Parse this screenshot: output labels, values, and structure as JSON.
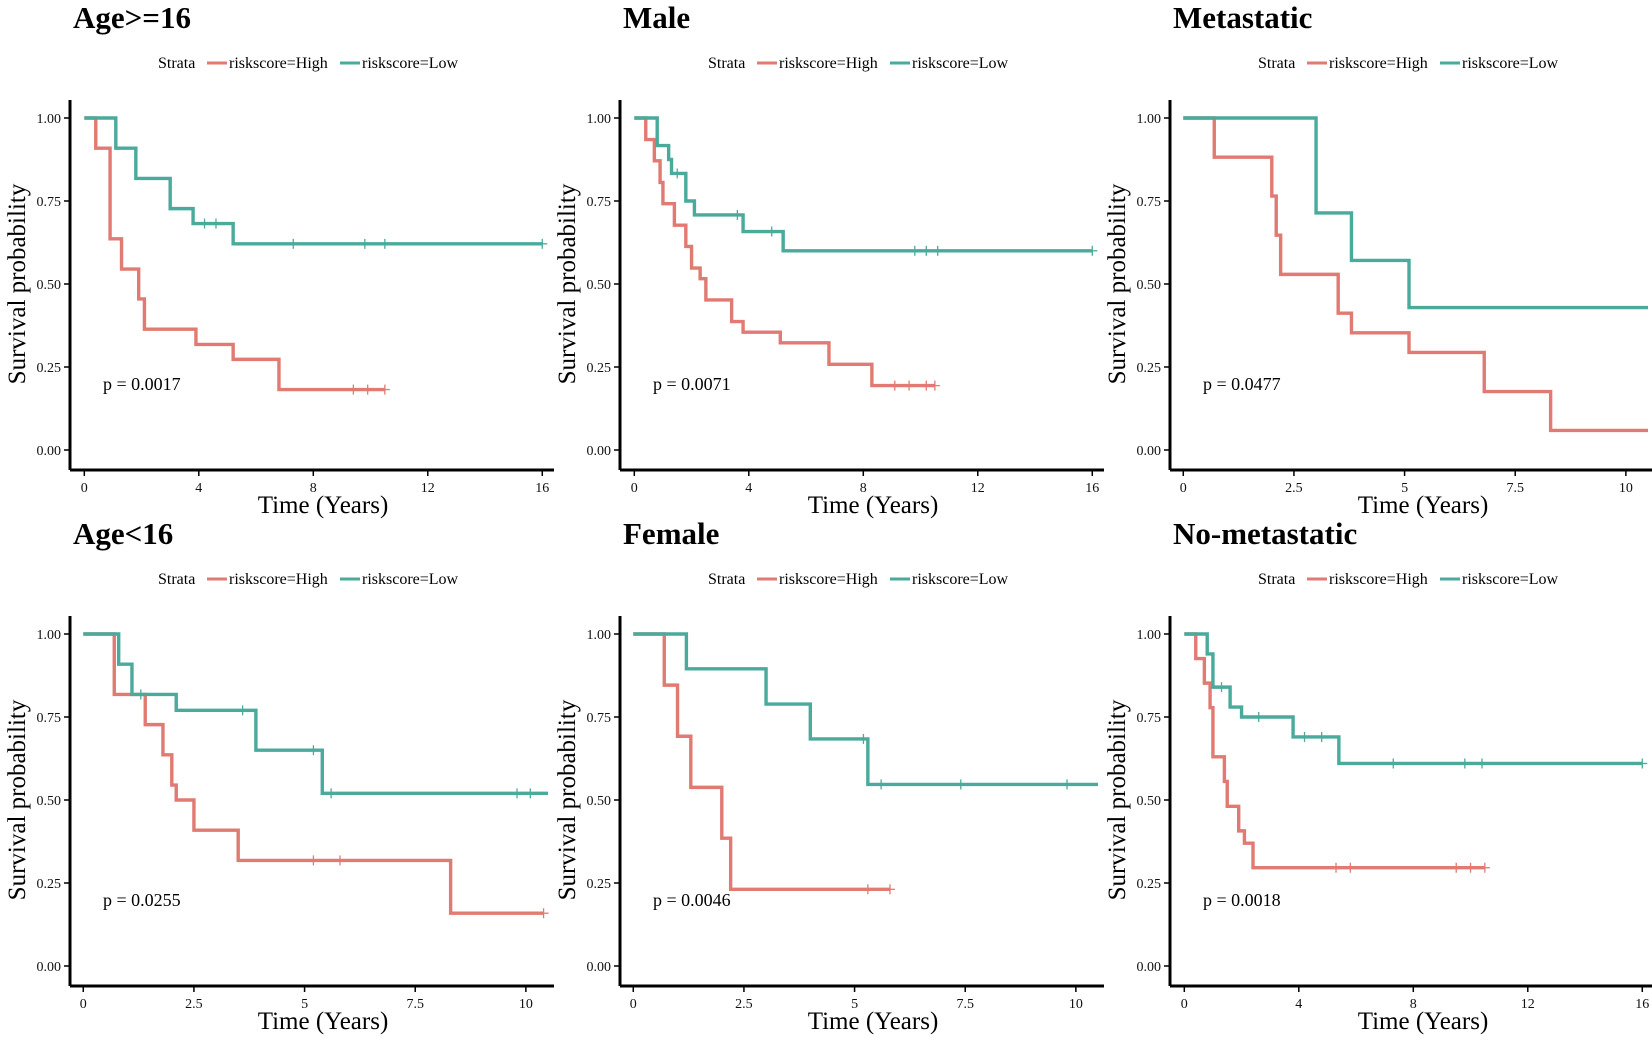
{
  "colors": {
    "high": "#E07A72",
    "low": "#4AAA9C",
    "axis": "#000000"
  },
  "chart_data": [
    {
      "type": "line",
      "title": "Age>=16",
      "xlabel": "Time (Years)",
      "ylabel": "Survival probability",
      "xlim": [
        -0.5,
        16.2
      ],
      "xticks": [
        0,
        4,
        8,
        12,
        16
      ],
      "xtick_labels": [
        "0",
        "4",
        "8",
        "12",
        "16"
      ],
      "ylim": [
        0,
        1
      ],
      "yticks": [
        0,
        0.25,
        0.5,
        0.75,
        1
      ],
      "ytick_labels": [
        "0.00",
        "0.25",
        "0.50",
        "0.75",
        "1.00"
      ],
      "legend": {
        "title": "Strata",
        "entries": [
          "riskscore=High",
          "riskscore=Low"
        ]
      },
      "pvalue": "p = 0.0017",
      "series": [
        {
          "name": "riskscore=High",
          "color": "#E07A72",
          "steps": [
            [
              0,
              1
            ],
            [
              0.4,
              0.909
            ],
            [
              0.9,
              0.636
            ],
            [
              1.3,
              0.545
            ],
            [
              1.9,
              0.455
            ],
            [
              2.1,
              0.364
            ],
            [
              3.9,
              0.318
            ],
            [
              5.2,
              0.273
            ],
            [
              6.8,
              0.182
            ],
            [
              10.5,
              0.182
            ]
          ],
          "censors": [
            [
              9.4,
              0.182
            ],
            [
              9.9,
              0.182
            ],
            [
              10.5,
              0.182
            ]
          ]
        },
        {
          "name": "riskscore=Low",
          "color": "#4AAA9C",
          "steps": [
            [
              0,
              1
            ],
            [
              1.1,
              0.909
            ],
            [
              1.8,
              0.818
            ],
            [
              3.0,
              0.727
            ],
            [
              3.8,
              0.682
            ],
            [
              5.2,
              0.621
            ],
            [
              16.0,
              0.621
            ]
          ],
          "censors": [
            [
              4.2,
              0.682
            ],
            [
              4.6,
              0.682
            ],
            [
              7.3,
              0.621
            ],
            [
              9.8,
              0.621
            ],
            [
              10.5,
              0.621
            ],
            [
              16.0,
              0.621
            ]
          ]
        }
      ]
    },
    {
      "type": "line",
      "title": "Male",
      "xlabel": "Time (Years)",
      "ylabel": "Survival probability",
      "xlim": [
        -0.5,
        16.2
      ],
      "xticks": [
        0,
        4,
        8,
        12,
        16
      ],
      "xtick_labels": [
        "0",
        "4",
        "8",
        "12",
        "16"
      ],
      "ylim": [
        0,
        1
      ],
      "yticks": [
        0,
        0.25,
        0.5,
        0.75,
        1
      ],
      "ytick_labels": [
        "0.00",
        "0.25",
        "0.50",
        "0.75",
        "1.00"
      ],
      "legend": {
        "title": "Strata",
        "entries": [
          "riskscore=High",
          "riskscore=Low"
        ]
      },
      "pvalue": "p = 0.0071",
      "series": [
        {
          "name": "riskscore=High",
          "color": "#E07A72",
          "steps": [
            [
              0,
              1
            ],
            [
              0.4,
              0.935
            ],
            [
              0.7,
              0.871
            ],
            [
              0.9,
              0.806
            ],
            [
              1.0,
              0.742
            ],
            [
              1.4,
              0.677
            ],
            [
              1.8,
              0.613
            ],
            [
              2.0,
              0.548
            ],
            [
              2.3,
              0.516
            ],
            [
              2.5,
              0.452
            ],
            [
              3.4,
              0.387
            ],
            [
              3.8,
              0.355
            ],
            [
              5.1,
              0.323
            ],
            [
              6.8,
              0.258
            ],
            [
              8.3,
              0.194
            ],
            [
              10.5,
              0.194
            ]
          ],
          "censors": [
            [
              9.1,
              0.194
            ],
            [
              9.6,
              0.194
            ],
            [
              10.2,
              0.194
            ],
            [
              10.5,
              0.194
            ]
          ]
        },
        {
          "name": "riskscore=Low",
          "color": "#4AAA9C",
          "steps": [
            [
              0,
              1
            ],
            [
              0.8,
              0.917
            ],
            [
              1.2,
              0.875
            ],
            [
              1.3,
              0.833
            ],
            [
              1.8,
              0.75
            ],
            [
              2.1,
              0.708
            ],
            [
              3.8,
              0.658
            ],
            [
              5.2,
              0.6
            ],
            [
              16.0,
              0.6
            ]
          ],
          "censors": [
            [
              1.5,
              0.833
            ],
            [
              3.6,
              0.708
            ],
            [
              4.8,
              0.658
            ],
            [
              9.8,
              0.6
            ],
            [
              10.2,
              0.6
            ],
            [
              10.6,
              0.6
            ],
            [
              16.0,
              0.6
            ]
          ]
        }
      ]
    },
    {
      "type": "line",
      "title": "Metastatic",
      "xlabel": "Time (Years)",
      "ylabel": "Survival probability",
      "xlim": [
        -0.3,
        10.5
      ],
      "xticks": [
        0,
        2.5,
        5,
        7.5,
        10
      ],
      "xtick_labels": [
        "0",
        "2.5",
        "5",
        "7.5",
        "10"
      ],
      "ylim": [
        0,
        1
      ],
      "yticks": [
        0,
        0.25,
        0.5,
        0.75,
        1
      ],
      "ytick_labels": [
        "0.00",
        "0.25",
        "0.50",
        "0.75",
        "1.00"
      ],
      "legend": {
        "title": "Strata",
        "entries": [
          "riskscore=High",
          "riskscore=Low"
        ]
      },
      "pvalue": "p = 0.0477",
      "series": [
        {
          "name": "riskscore=High",
          "color": "#E07A72",
          "steps": [
            [
              0,
              1
            ],
            [
              0.7,
              0.882
            ],
            [
              2.0,
              0.765
            ],
            [
              2.1,
              0.647
            ],
            [
              2.2,
              0.529
            ],
            [
              3.5,
              0.412
            ],
            [
              3.8,
              0.353
            ],
            [
              5.1,
              0.294
            ],
            [
              6.8,
              0.176
            ],
            [
              8.3,
              0.059
            ],
            [
              10.5,
              0.059
            ]
          ],
          "censors": []
        },
        {
          "name": "riskscore=Low",
          "color": "#4AAA9C",
          "steps": [
            [
              0,
              1
            ],
            [
              3.0,
              0.714
            ],
            [
              3.8,
              0.571
            ],
            [
              5.1,
              0.429
            ],
            [
              10.5,
              0.429
            ]
          ],
          "censors": []
        }
      ]
    },
    {
      "type": "line",
      "title": "Age<16",
      "xlabel": "Time (Years)",
      "ylabel": "Survival probability",
      "xlim": [
        -0.3,
        10.5
      ],
      "xticks": [
        0,
        2.5,
        5,
        7.5,
        10
      ],
      "xtick_labels": [
        "0",
        "2.5",
        "5",
        "7.5",
        "10"
      ],
      "ylim": [
        0,
        1
      ],
      "yticks": [
        0,
        0.25,
        0.5,
        0.75,
        1
      ],
      "ytick_labels": [
        "0.00",
        "0.25",
        "0.50",
        "0.75",
        "1.00"
      ],
      "legend": {
        "title": "Strata",
        "entries": [
          "riskscore=High",
          "riskscore=Low"
        ]
      },
      "pvalue": "p = 0.0255",
      "series": [
        {
          "name": "riskscore=High",
          "color": "#E07A72",
          "steps": [
            [
              0,
              1
            ],
            [
              0.7,
              0.818
            ],
            [
              1.4,
              0.727
            ],
            [
              1.8,
              0.636
            ],
            [
              2.0,
              0.545
            ],
            [
              2.1,
              0.5
            ],
            [
              2.5,
              0.409
            ],
            [
              3.5,
              0.318
            ],
            [
              8.3,
              0.159
            ],
            [
              10.4,
              0.159
            ]
          ],
          "censors": [
            [
              5.2,
              0.318
            ],
            [
              5.8,
              0.318
            ],
            [
              10.4,
              0.159
            ]
          ]
        },
        {
          "name": "riskscore=Low",
          "color": "#4AAA9C",
          "steps": [
            [
              0,
              1
            ],
            [
              0.8,
              0.909
            ],
            [
              1.1,
              0.818
            ],
            [
              2.1,
              0.77
            ],
            [
              3.9,
              0.65
            ],
            [
              5.4,
              0.52
            ],
            [
              10.5,
              0.52
            ]
          ],
          "censors": [
            [
              1.3,
              0.818
            ],
            [
              3.6,
              0.77
            ],
            [
              5.2,
              0.65
            ],
            [
              5.6,
              0.52
            ],
            [
              9.8,
              0.52
            ],
            [
              10.1,
              0.52
            ]
          ]
        }
      ]
    },
    {
      "type": "line",
      "title": "Female",
      "xlabel": "Time (Years)",
      "ylabel": "Survival probability",
      "xlim": [
        -0.3,
        10.5
      ],
      "xticks": [
        0,
        2.5,
        5,
        7.5,
        10
      ],
      "xtick_labels": [
        "0",
        "2.5",
        "5",
        "7.5",
        "10"
      ],
      "ylim": [
        0,
        1
      ],
      "yticks": [
        0,
        0.25,
        0.5,
        0.75,
        1
      ],
      "ytick_labels": [
        "0.00",
        "0.25",
        "0.50",
        "0.75",
        "1.00"
      ],
      "legend": {
        "title": "Strata",
        "entries": [
          "riskscore=High",
          "riskscore=Low"
        ]
      },
      "pvalue": "p = 0.0046",
      "series": [
        {
          "name": "riskscore=High",
          "color": "#E07A72",
          "steps": [
            [
              0,
              1
            ],
            [
              0.7,
              0.846
            ],
            [
              1.0,
              0.692
            ],
            [
              1.3,
              0.538
            ],
            [
              2.0,
              0.385
            ],
            [
              2.2,
              0.231
            ],
            [
              5.8,
              0.231
            ]
          ],
          "censors": [
            [
              5.3,
              0.231
            ],
            [
              5.8,
              0.231
            ]
          ]
        },
        {
          "name": "riskscore=Low",
          "color": "#4AAA9C",
          "steps": [
            [
              0,
              1
            ],
            [
              1.2,
              0.895
            ],
            [
              3.0,
              0.789
            ],
            [
              4.0,
              0.684
            ],
            [
              5.3,
              0.547
            ],
            [
              10.5,
              0.547
            ]
          ],
          "censors": [
            [
              5.2,
              0.684
            ],
            [
              5.6,
              0.547
            ],
            [
              7.4,
              0.547
            ],
            [
              9.8,
              0.547
            ]
          ]
        }
      ]
    },
    {
      "type": "line",
      "title": "No-metastatic",
      "xlabel": "Time (Years)",
      "ylabel": "Survival probability",
      "xlim": [
        -0.5,
        16.2
      ],
      "xticks": [
        0,
        4,
        8,
        12,
        16
      ],
      "xtick_labels": [
        "0",
        "4",
        "8",
        "12",
        "16"
      ],
      "ylim": [
        0,
        1
      ],
      "yticks": [
        0,
        0.25,
        0.5,
        0.75,
        1
      ],
      "ytick_labels": [
        "0.00",
        "0.25",
        "0.50",
        "0.75",
        "1.00"
      ],
      "legend": {
        "title": "Strata",
        "entries": [
          "riskscore=High",
          "riskscore=Low"
        ]
      },
      "pvalue": "p = 0.0018",
      "series": [
        {
          "name": "riskscore=High",
          "color": "#E07A72",
          "steps": [
            [
              0,
              1
            ],
            [
              0.4,
              0.926
            ],
            [
              0.7,
              0.852
            ],
            [
              0.9,
              0.778
            ],
            [
              1.0,
              0.63
            ],
            [
              1.4,
              0.556
            ],
            [
              1.5,
              0.481
            ],
            [
              1.9,
              0.407
            ],
            [
              2.1,
              0.37
            ],
            [
              2.4,
              0.296
            ],
            [
              10.5,
              0.296
            ]
          ],
          "censors": [
            [
              5.3,
              0.296
            ],
            [
              5.8,
              0.296
            ],
            [
              9.5,
              0.296
            ],
            [
              10.0,
              0.296
            ],
            [
              10.5,
              0.296
            ]
          ]
        },
        {
          "name": "riskscore=Low",
          "color": "#4AAA9C",
          "steps": [
            [
              0,
              1
            ],
            [
              0.8,
              0.94
            ],
            [
              1.0,
              0.84
            ],
            [
              1.6,
              0.78
            ],
            [
              2.0,
              0.75
            ],
            [
              3.8,
              0.69
            ],
            [
              5.4,
              0.61
            ],
            [
              16.0,
              0.61
            ]
          ],
          "censors": [
            [
              1.3,
              0.84
            ],
            [
              2.6,
              0.75
            ],
            [
              4.2,
              0.69
            ],
            [
              4.8,
              0.69
            ],
            [
              7.3,
              0.61
            ],
            [
              9.8,
              0.61
            ],
            [
              10.4,
              0.61
            ],
            [
              16.0,
              0.61
            ]
          ]
        }
      ]
    }
  ]
}
